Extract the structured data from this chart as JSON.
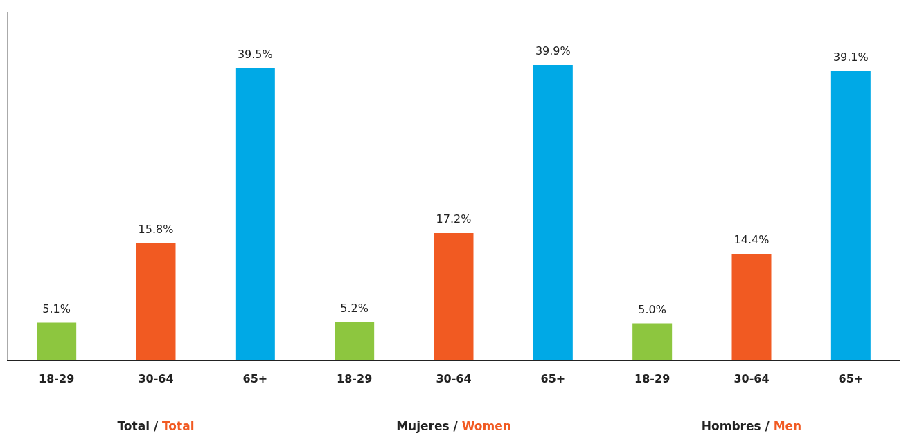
{
  "chart_data": [
    {
      "type": "bar",
      "xlabel": "Total / Total",
      "categories": [
        "18-29",
        "30-64",
        "65+"
      ],
      "values": [
        5.1,
        15.8,
        39.5
      ],
      "colors": [
        "#8dc63f",
        "#f15a22",
        "#00a9e6"
      ],
      "value_labels": [
        "5.1%",
        "15.8%",
        "39.5%"
      ],
      "ylim": [
        0,
        47
      ],
      "tick_labels": "x",
      "grid": false
    },
    {
      "type": "bar",
      "xlabel": "Mujeres / Women",
      "categories": [
        "18-29",
        "30-64",
        "65+"
      ],
      "values": [
        5.2,
        17.2,
        39.9
      ],
      "colors": [
        "#8dc63f",
        "#f15a22",
        "#00a9e6"
      ],
      "value_labels": [
        "5.2%",
        "17.2%",
        "39.9%"
      ],
      "ylim": [
        0,
        47
      ],
      "tick_labels": "x",
      "grid": false
    },
    {
      "type": "bar",
      "xlabel": "Hombres / Men",
      "categories": [
        "18-29",
        "30-64",
        "65+"
      ],
      "values": [
        5.0,
        14.4,
        39.1
      ],
      "colors": [
        "#8dc63f",
        "#f15a22",
        "#00a9e6"
      ],
      "value_labels": [
        "5.0%",
        "14.4%",
        "39.1%"
      ],
      "ylim": [
        0,
        47
      ],
      "tick_labels": "x",
      "grid": false
    }
  ]
}
